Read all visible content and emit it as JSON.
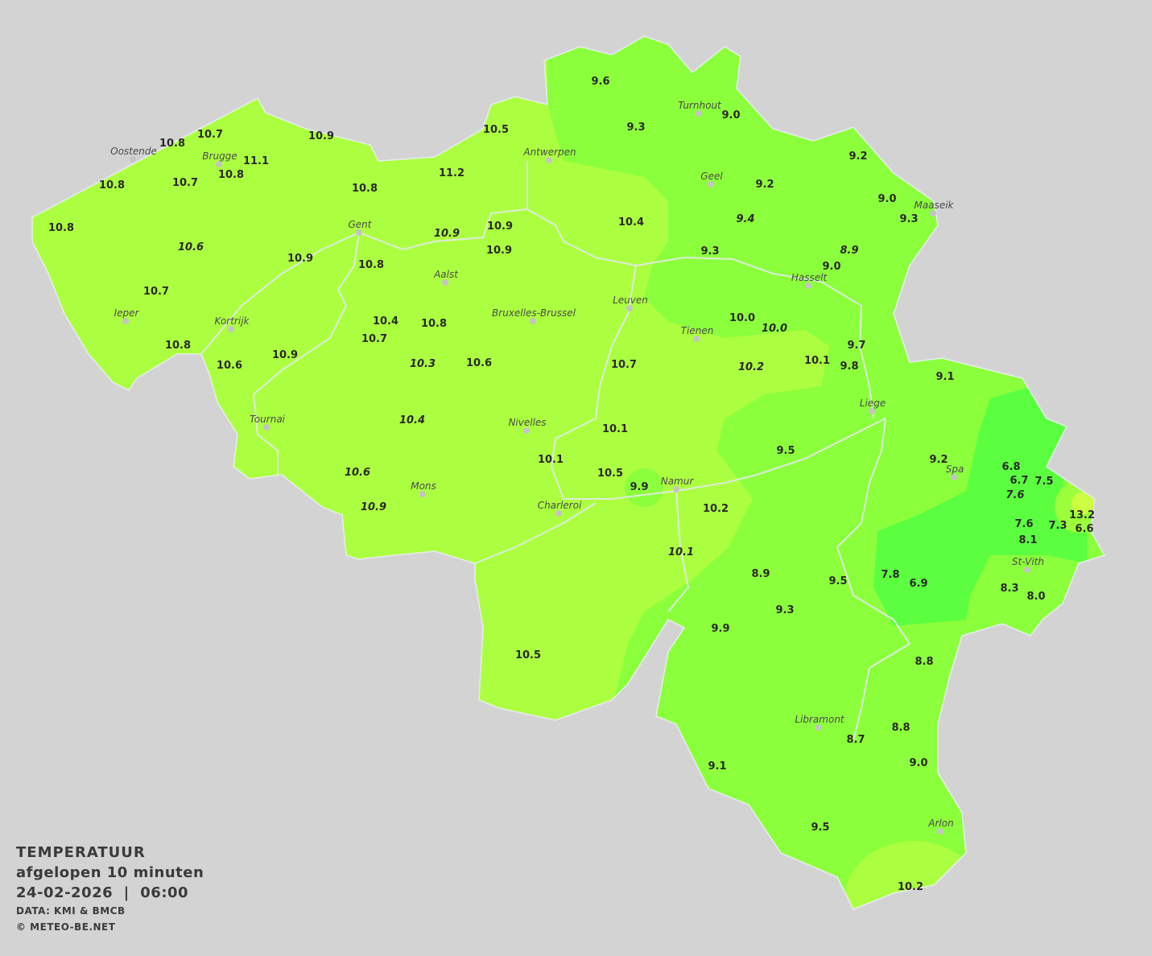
{
  "legend": {
    "title": "TEMPERATUUR",
    "period": "afgelopen 10 minuten",
    "datetime": "24-02-2026  |  06:00",
    "source": "DATA: KMI & BMCB",
    "copyright": "© METEO-BE.NET"
  },
  "colors": {
    "background": "#d3d3d3",
    "warm_zone": "#acff40",
    "mid_zone": "#8cff3c",
    "cold_zone": "#5bff3f",
    "hot_spot": "#ccff44",
    "borders": "#e4e8ee"
  },
  "cities": [
    "Oostende",
    "Brugge",
    "Antwerpen",
    "Turnhout",
    "Geel",
    "Maaseik",
    "Gent",
    "Aalst",
    "Hasselt",
    "Leuven",
    "Bruxelles-Brussel",
    "Ieper",
    "Kortrijk",
    "Tienen",
    "Liege",
    "Tournai",
    "Nivelles",
    "Spa",
    "Namur",
    "Mons",
    "Charleroi",
    "St-Vith",
    "Libramont",
    "Arlon"
  ],
  "readings": [
    {
      "v": "9.6"
    },
    {
      "v": "9.3"
    },
    {
      "v": "9.0"
    },
    {
      "v": "9.2"
    },
    {
      "v": "9.2"
    },
    {
      "v": "9.0"
    },
    {
      "v": "9.3"
    },
    {
      "v": "9.4",
      "italic": true
    },
    {
      "v": "10.4"
    },
    {
      "v": "9.3"
    },
    {
      "v": "8.9",
      "italic": true
    },
    {
      "v": "9.0"
    },
    {
      "v": "10.5"
    },
    {
      "v": "11.2"
    },
    {
      "v": "10.9"
    },
    {
      "v": "10.7"
    },
    {
      "v": "10.8"
    },
    {
      "v": "11.1"
    },
    {
      "v": "10.8"
    },
    {
      "v": "10.7"
    },
    {
      "v": "10.8"
    },
    {
      "v": "10.8"
    },
    {
      "v": "10.6",
      "italic": true
    },
    {
      "v": "10.8"
    },
    {
      "v": "10.9"
    },
    {
      "v": "10.9",
      "italic": true
    },
    {
      "v": "10.9"
    },
    {
      "v": "10.9"
    },
    {
      "v": "10.8"
    },
    {
      "v": "10.7"
    },
    {
      "v": "10.4"
    },
    {
      "v": "10.8"
    },
    {
      "v": "10.7"
    },
    {
      "v": "10.8"
    },
    {
      "v": "10.9"
    },
    {
      "v": "10.6"
    },
    {
      "v": "10.3",
      "italic": true
    },
    {
      "v": "10.6"
    },
    {
      "v": "10.7"
    },
    {
      "v": "10.0"
    },
    {
      "v": "10.0",
      "italic": true
    },
    {
      "v": "10.2",
      "italic": true
    },
    {
      "v": "10.1"
    },
    {
      "v": "9.7"
    },
    {
      "v": "9.8"
    },
    {
      "v": "9.1"
    },
    {
      "v": "10.4",
      "italic": true
    },
    {
      "v": "10.1"
    },
    {
      "v": "10.1"
    },
    {
      "v": "9.5"
    },
    {
      "v": "10.6",
      "italic": true
    },
    {
      "v": "10.5"
    },
    {
      "v": "9.9"
    },
    {
      "v": "10.9",
      "italic": true
    },
    {
      "v": "10.2"
    },
    {
      "v": "9.2"
    },
    {
      "v": "6.8"
    },
    {
      "v": "6.7"
    },
    {
      "v": "7.5"
    },
    {
      "v": "7.6",
      "italic": true
    },
    {
      "v": "13.2"
    },
    {
      "v": "7.3"
    },
    {
      "v": "6.6"
    },
    {
      "v": "7.6"
    },
    {
      "v": "8.1"
    },
    {
      "v": "10.1",
      "italic": true
    },
    {
      "v": "8.9"
    },
    {
      "v": "9.5"
    },
    {
      "v": "7.8"
    },
    {
      "v": "6.9"
    },
    {
      "v": "8.3"
    },
    {
      "v": "8.0"
    },
    {
      "v": "9.3"
    },
    {
      "v": "9.9"
    },
    {
      "v": "10.5"
    },
    {
      "v": "8.8"
    },
    {
      "v": "8.8"
    },
    {
      "v": "8.7"
    },
    {
      "v": "9.0"
    },
    {
      "v": "9.1"
    },
    {
      "v": "9.5"
    },
    {
      "v": "10.2"
    }
  ]
}
